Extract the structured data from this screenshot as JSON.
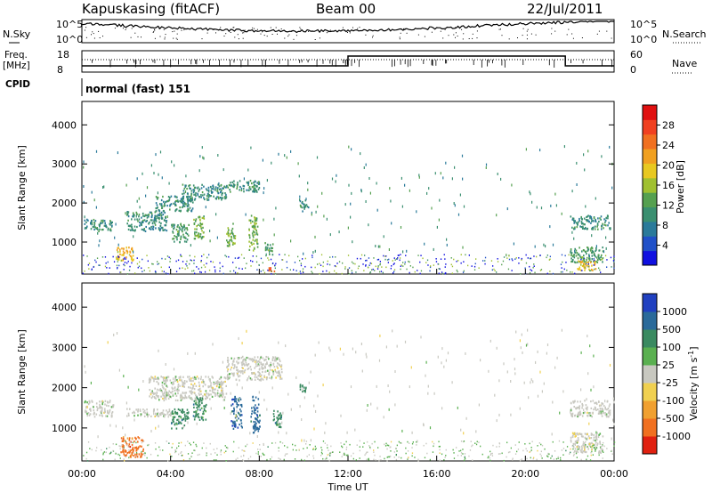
{
  "header": {
    "station": "Kapuskasing (fitACF)",
    "beam": "Beam 00",
    "date": "22/Jul/2011"
  },
  "top_panel": {
    "left_label": "N.Sky",
    "right_label": "N.Search",
    "left_ticks": [
      "10^5",
      "10^0"
    ],
    "right_ticks": [
      "10^5",
      "10^0"
    ]
  },
  "freq_panel": {
    "left_label_line1": "Freq.",
    "left_label_line2": "[MHz]",
    "right_label": "Nave",
    "left_ticks": [
      "18",
      "8"
    ],
    "right_ticks": [
      "60",
      "0"
    ]
  },
  "cpid": {
    "label": "CPID",
    "mode": "normal (fast) 151"
  },
  "x_axis": {
    "label": "Time UT",
    "ticks": [
      "00:00",
      "04:00",
      "08:00",
      "12:00",
      "16:00",
      "20:00",
      "00:00"
    ]
  },
  "power_panel": {
    "y_label": "Slant Range [km]",
    "y_ticks": [
      "4000",
      "3000",
      "2000",
      "1000"
    ],
    "colorbar_label": "Power [dB]",
    "colorbar_ticks": [
      "28",
      "24",
      "20",
      "16",
      "12",
      "8",
      "4"
    ],
    "colors": [
      "#1010e0",
      "#2050c8",
      "#2a7a9a",
      "#3a8f70",
      "#55a050",
      "#a0c030",
      "#e8c820",
      "#f0a020",
      "#f07020",
      "#f04020",
      "#e01010"
    ]
  },
  "velocity_panel": {
    "y_label": "Slant Range [km]",
    "y_ticks": [
      "4000",
      "3000",
      "2000",
      "1000"
    ],
    "colorbar_label": "Velocity [m s",
    "colorbar_label_exp": "-1",
    "colorbar_label_end": "]",
    "colorbar_ticks": [
      "1000",
      "500",
      "100",
      "25",
      "-25",
      "-100",
      "-500",
      "-1000"
    ],
    "colors": [
      "#2040c0",
      "#2a6a9a",
      "#3a8a60",
      "#5ab050",
      "#c8c8c0",
      "#f0d050",
      "#f0a030",
      "#f07020",
      "#e02010"
    ]
  },
  "chart_data": {
    "type": "heatmap",
    "x_range_hours": [
      0,
      24
    ],
    "y_range_km": [
      180,
      4600
    ],
    "power_blobs": [
      {
        "t0": 0.1,
        "t1": 1.4,
        "r0": 1300,
        "r1": 1600,
        "v": 8
      },
      {
        "t0": 1.5,
        "t1": 2.3,
        "r0": 550,
        "r1": 900,
        "v": 18
      },
      {
        "t0": 2.0,
        "t1": 3.8,
        "r0": 1300,
        "r1": 1800,
        "v": 8
      },
      {
        "t0": 3.3,
        "t1": 5.0,
        "r0": 1800,
        "r1": 2200,
        "v": 8
      },
      {
        "t0": 4.5,
        "t1": 6.5,
        "r0": 2100,
        "r1": 2500,
        "v": 8
      },
      {
        "t0": 6.5,
        "t1": 8.0,
        "r0": 2300,
        "r1": 2600,
        "v": 8
      },
      {
        "t0": 4.0,
        "t1": 4.8,
        "r0": 1000,
        "r1": 1500,
        "v": 10
      },
      {
        "t0": 5.0,
        "t1": 5.5,
        "r0": 1100,
        "r1": 1700,
        "v": 12
      },
      {
        "t0": 6.5,
        "t1": 6.9,
        "r0": 900,
        "r1": 1500,
        "v": 12
      },
      {
        "t0": 7.5,
        "t1": 7.9,
        "r0": 800,
        "r1": 1700,
        "v": 12
      },
      {
        "t0": 8.2,
        "t1": 8.6,
        "r0": 700,
        "r1": 1000,
        "v": 10
      },
      {
        "t0": 9.8,
        "t1": 10.2,
        "r0": 1800,
        "r1": 2100,
        "v": 8
      },
      {
        "t0": 8.4,
        "t1": 8.7,
        "r0": 250,
        "r1": 400,
        "v": 24
      },
      {
        "t0": 22.0,
        "t1": 23.8,
        "r0": 1350,
        "r1": 1700,
        "v": 8
      },
      {
        "t0": 22.0,
        "t1": 23.5,
        "r0": 500,
        "r1": 900,
        "v": 10
      },
      {
        "t0": 22.3,
        "t1": 23.2,
        "r0": 300,
        "r1": 550,
        "v": 18
      }
    ],
    "velocity_blobs": [
      {
        "t0": 0.1,
        "t1": 1.4,
        "r0": 1300,
        "r1": 1700,
        "v": 0
      },
      {
        "t0": 1.7,
        "t1": 2.8,
        "r0": 300,
        "r1": 800,
        "v": -500
      },
      {
        "t0": 2.0,
        "t1": 4.0,
        "r0": 1300,
        "r1": 1500,
        "v": 0
      },
      {
        "t0": 3.0,
        "t1": 6.5,
        "r0": 1700,
        "r1": 2300,
        "v": 0
      },
      {
        "t0": 6.5,
        "t1": 9.0,
        "r0": 2200,
        "r1": 2800,
        "v": 0
      },
      {
        "t0": 4.0,
        "t1": 4.8,
        "r0": 1000,
        "r1": 1500,
        "v": 100
      },
      {
        "t0": 5.0,
        "t1": 5.6,
        "r0": 1200,
        "r1": 1800,
        "v": 100
      },
      {
        "t0": 6.7,
        "t1": 7.2,
        "r0": 1000,
        "r1": 1800,
        "v": 500
      },
      {
        "t0": 7.6,
        "t1": 8.0,
        "r0": 900,
        "r1": 1800,
        "v": 500
      },
      {
        "t0": 8.6,
        "t1": 9.0,
        "r0": 1000,
        "r1": 1500,
        "v": 100
      },
      {
        "t0": 9.8,
        "t1": 10.2,
        "r0": 1900,
        "r1": 2100,
        "v": 100
      },
      {
        "t0": 22.0,
        "t1": 23.8,
        "r0": 1300,
        "r1": 1700,
        "v": 0
      },
      {
        "t0": 22.0,
        "t1": 23.5,
        "r0": 400,
        "r1": 900,
        "v": 0
      }
    ]
  }
}
